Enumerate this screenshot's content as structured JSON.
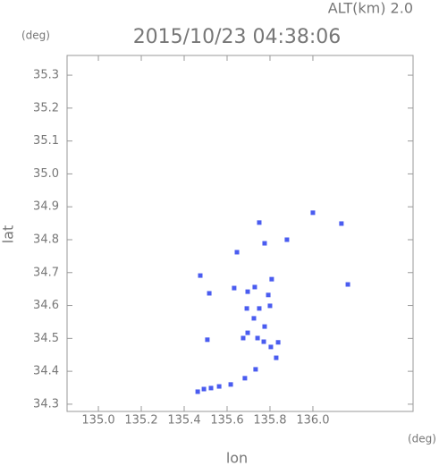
{
  "chart_data": {
    "type": "scatter",
    "title": "2015/10/23 04:38:06",
    "subtitle": "ALT(km) 2.0",
    "x_label": "lon",
    "y_label": "lat",
    "x_unit": "(deg)",
    "y_unit": "(deg)",
    "color": "#4a5cf0",
    "x": [
      135.75,
      135.775,
      135.879,
      136.0,
      136.133,
      135.646,
      135.475,
      135.517,
      135.633,
      135.696,
      135.729,
      135.808,
      135.792,
      136.163,
      135.692,
      135.75,
      135.8,
      135.725,
      135.775,
      135.696,
      135.675,
      135.742,
      135.771,
      135.838,
      135.804,
      135.829,
      135.733,
      135.683,
      135.617,
      135.563,
      135.525,
      135.492,
      135.463,
      135.508
    ],
    "y": [
      34.852,
      34.789,
      34.8,
      34.882,
      34.849,
      34.762,
      34.691,
      34.637,
      34.653,
      34.642,
      34.656,
      34.68,
      34.632,
      34.664,
      34.591,
      34.591,
      34.599,
      34.561,
      34.536,
      34.517,
      34.501,
      34.501,
      34.49,
      34.488,
      34.474,
      34.441,
      34.406,
      34.379,
      34.36,
      34.354,
      34.349,
      34.346,
      34.338,
      34.496
    ],
    "xlim": [
      134.854,
      136.467
    ],
    "ylim": [
      34.278,
      35.36
    ],
    "xticks": [
      {
        "value": 135,
        "label": "135.0"
      },
      135.2,
      135.4,
      135.6,
      135.8,
      {
        "value": 136,
        "label": "136.0"
      }
    ],
    "yticks": [
      34.3,
      34.4,
      34.5,
      34.6,
      34.7,
      34.8,
      34.9,
      {
        "value": 35,
        "label": "35.0"
      },
      35.1,
      35.2,
      35.3
    ]
  }
}
